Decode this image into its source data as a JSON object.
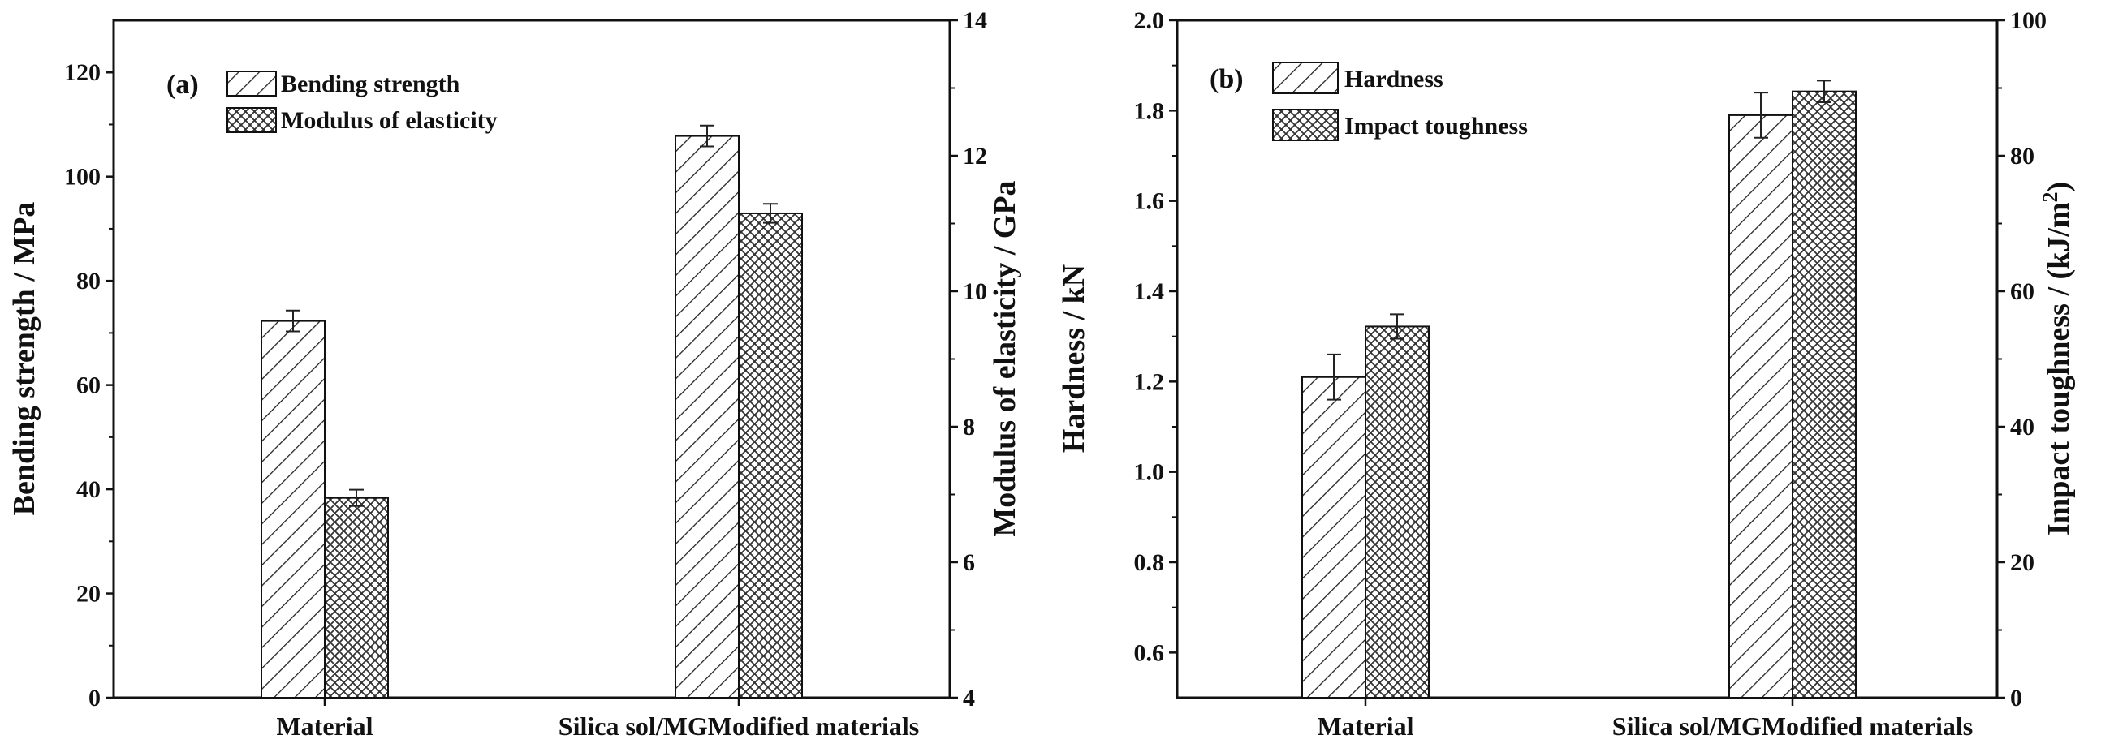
{
  "chart_data": [
    {
      "type": "bar",
      "panel": "(a)",
      "categories": [
        "Material",
        "Silica sol/MGModified materials"
      ],
      "series": [
        {
          "name": "Bending strength",
          "axis": "left",
          "pattern": "hatch",
          "values": [
            72.3,
            107.8
          ],
          "errors": [
            2.0,
            2.0
          ]
        },
        {
          "name": "Modulus of elasticity",
          "axis": "right",
          "pattern": "cross",
          "values": [
            6.95,
            11.15
          ],
          "errors": [
            0.12,
            0.14
          ]
        }
      ],
      "ylabel": "Bending strength / MPa",
      "ylim": [
        0,
        130
      ],
      "yticks": [
        "0",
        "20",
        "40",
        "60",
        "80",
        "100",
        "120"
      ],
      "y2label": "Modulus of elasticity / GPa",
      "y2lim": [
        4,
        14
      ],
      "y2ticks": [
        "4",
        "6",
        "8",
        "10",
        "12",
        "14"
      ],
      "legend": "top-left"
    },
    {
      "type": "bar",
      "panel": "(b)",
      "categories": [
        "Material",
        "Silica sol/MGModified materials"
      ],
      "series": [
        {
          "name": "Hardness",
          "axis": "left",
          "pattern": "hatch",
          "values": [
            1.21,
            1.79
          ],
          "errors": [
            0.05,
            0.05
          ]
        },
        {
          "name": "Impact toughness",
          "axis": "right",
          "pattern": "cross",
          "values": [
            54.8,
            89.5
          ],
          "errors": [
            1.8,
            1.6
          ]
        }
      ],
      "ylabel": "Hardness / kN",
      "ylim": [
        0.5,
        2.0
      ],
      "yticks": [
        "0.6",
        "0.8",
        "1.0",
        "1.2",
        "1.4",
        "1.6",
        "1.8",
        "2.0"
      ],
      "y2label": "Impact toughness / (kJ/m",
      "y2label_sup": "2",
      "y2label_end": ")",
      "y2lim": [
        0,
        100
      ],
      "y2ticks": [
        "0",
        "20",
        "40",
        "60",
        "80",
        "100"
      ],
      "legend": "top-left"
    }
  ]
}
